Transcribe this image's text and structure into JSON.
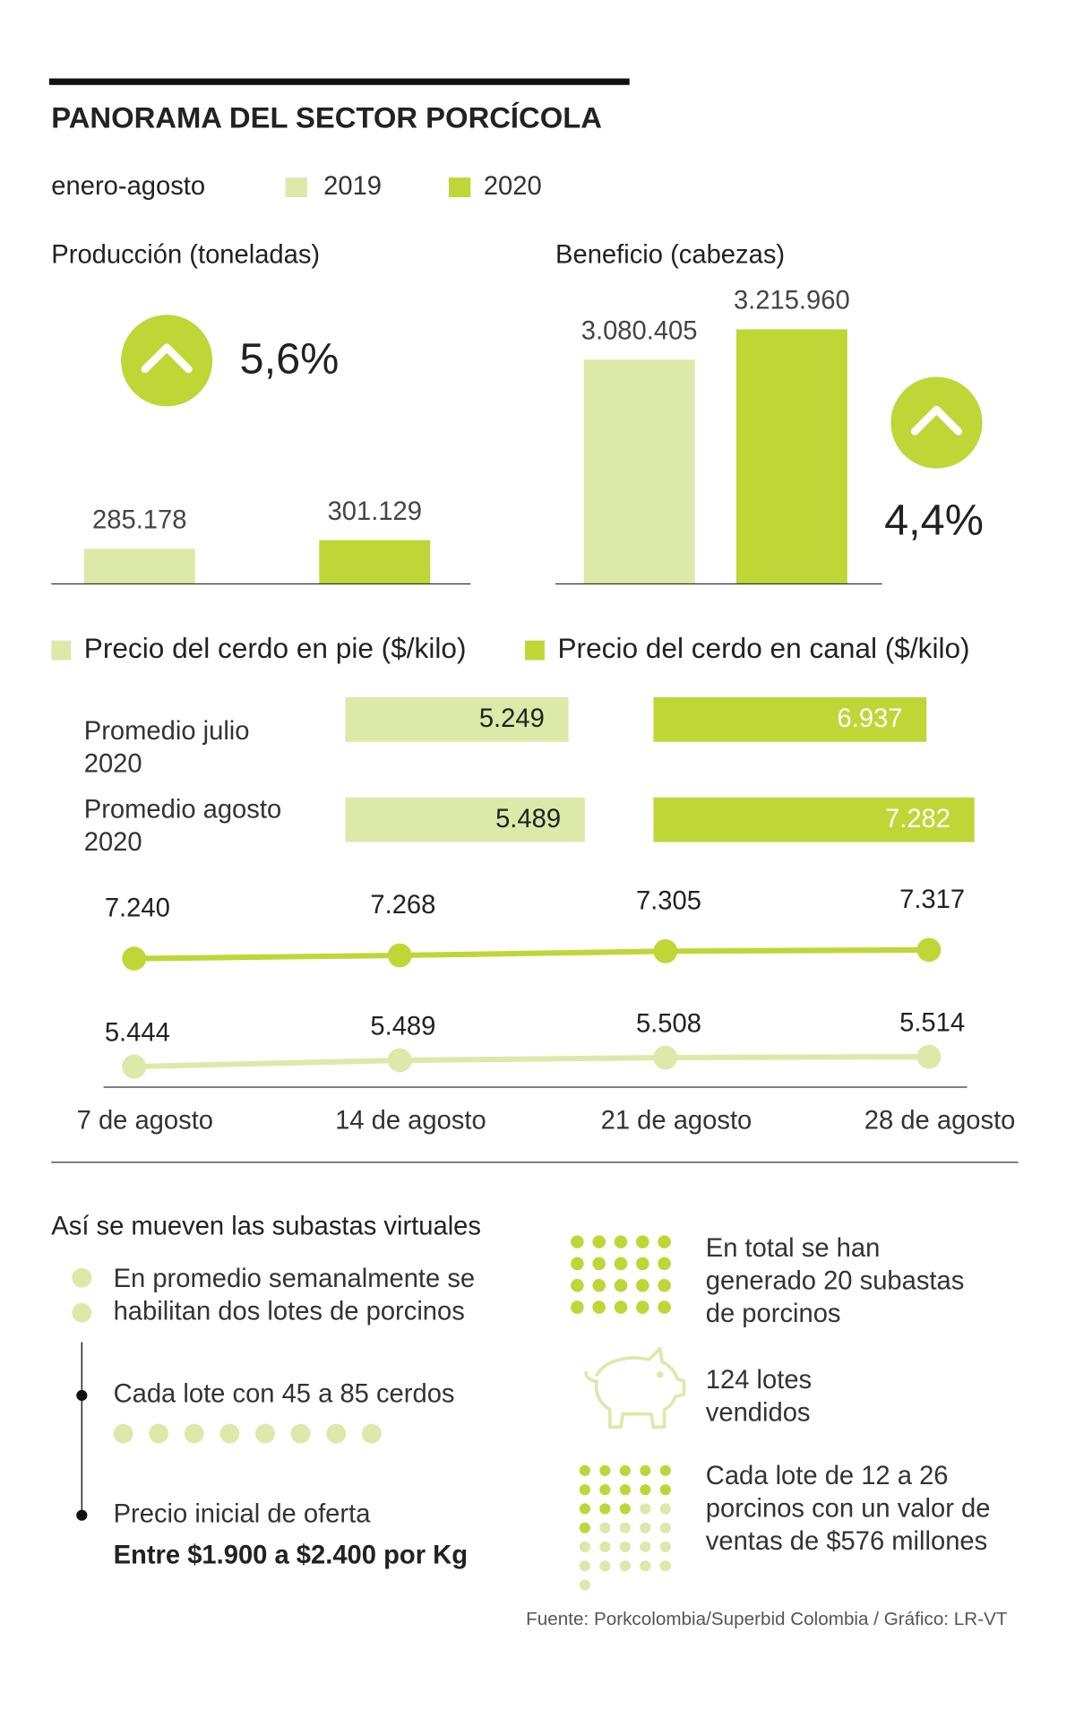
{
  "header": {
    "title": "PANORAMA DEL SECTOR PORCÍCOLA",
    "period": "enero-agosto",
    "legend": [
      {
        "name": "2019",
        "color": "#dce9a9"
      },
      {
        "name": "2020",
        "color": "#bfd637"
      }
    ]
  },
  "chart_data": [
    {
      "type": "bar",
      "title": "Producción (toneladas)",
      "values": [
        285178,
        301129
      ],
      "value_labels": [
        "285.178",
        "301.129"
      ],
      "colors": [
        "#dce9a9",
        "#bfd637"
      ],
      "ylim": [
        221000,
        791000
      ],
      "annotation": "5,6%"
    },
    {
      "type": "bar",
      "title": "Beneficio   (cabezas)",
      "values": [
        3080405,
        3215960
      ],
      "value_labels": [
        "3.080.405",
        "3.215.960"
      ],
      "colors": [
        "#dce9a9",
        "#bfd637"
      ],
      "ylim": [
        2080000,
        3470000
      ],
      "annotation": "4,4%"
    },
    {
      "type": "hbar",
      "categories": [
        "Promedio julio 2020",
        "Promedio agosto 2020"
      ],
      "series": [
        {
          "name": "Precio del cerdo en pie ($/kilo)",
          "color": "#dce9a9",
          "values": [
            5249,
            5489
          ],
          "value_labels": [
            "5.249",
            "5.489"
          ],
          "xlim": [
            1970,
            6130
          ]
        },
        {
          "name": "Precio del cerdo en canal ($/kilo)",
          "color": "#bfd637",
          "values": [
            6937,
            7282
          ],
          "value_labels": [
            "6.937",
            "7.282"
          ],
          "xlim": [
            4970,
            7323
          ]
        }
      ]
    },
    {
      "type": "line",
      "categories": [
        "7 de agosto",
        "14 de agosto",
        "21 de agosto",
        "28 de agosto"
      ],
      "ylim": [
        6180,
        8010
      ],
      "y2lim": [
        5360,
        6830
      ],
      "series": [
        {
          "color": "#bfd637",
          "values": [
            7240,
            7268,
            7305,
            7317
          ],
          "value_labels": [
            "7.240",
            "7.268",
            "7.305",
            "7.317"
          ]
        },
        {
          "color": "#dce9a9",
          "axis": "y2",
          "values": [
            5444,
            5489,
            5508,
            5514
          ],
          "value_labels": [
            "5.444",
            "5.489",
            "5.508",
            "5.514"
          ]
        }
      ]
    }
  ],
  "auctions": {
    "title": "Así se mueven las subastas virtuales",
    "left": [
      {
        "lines": [
          "En promedio semanalmente se",
          "habilitan dos lotes de porcinos"
        ]
      },
      {
        "lines": [
          "Cada lote con 45 a 85 cerdos"
        ]
      },
      {
        "lines": [
          "Precio inicial de oferta"
        ],
        "bold": "Entre $1.900 a $2.400 por Kg"
      }
    ],
    "right": [
      {
        "lines": [
          "En total se han",
          "generado 20 subastas",
          "de porcinos"
        ]
      },
      {
        "lines": [
          "124 lotes",
          "vendidos"
        ]
      },
      {
        "lines": [
          "Cada lote de 12 a 26",
          "porcinos con un valor de",
          "ventas de $576 millones"
        ]
      }
    ]
  },
  "source": "Fuente: Porkcolombia/Superbid Colombia / Gráfico: LR-VT"
}
